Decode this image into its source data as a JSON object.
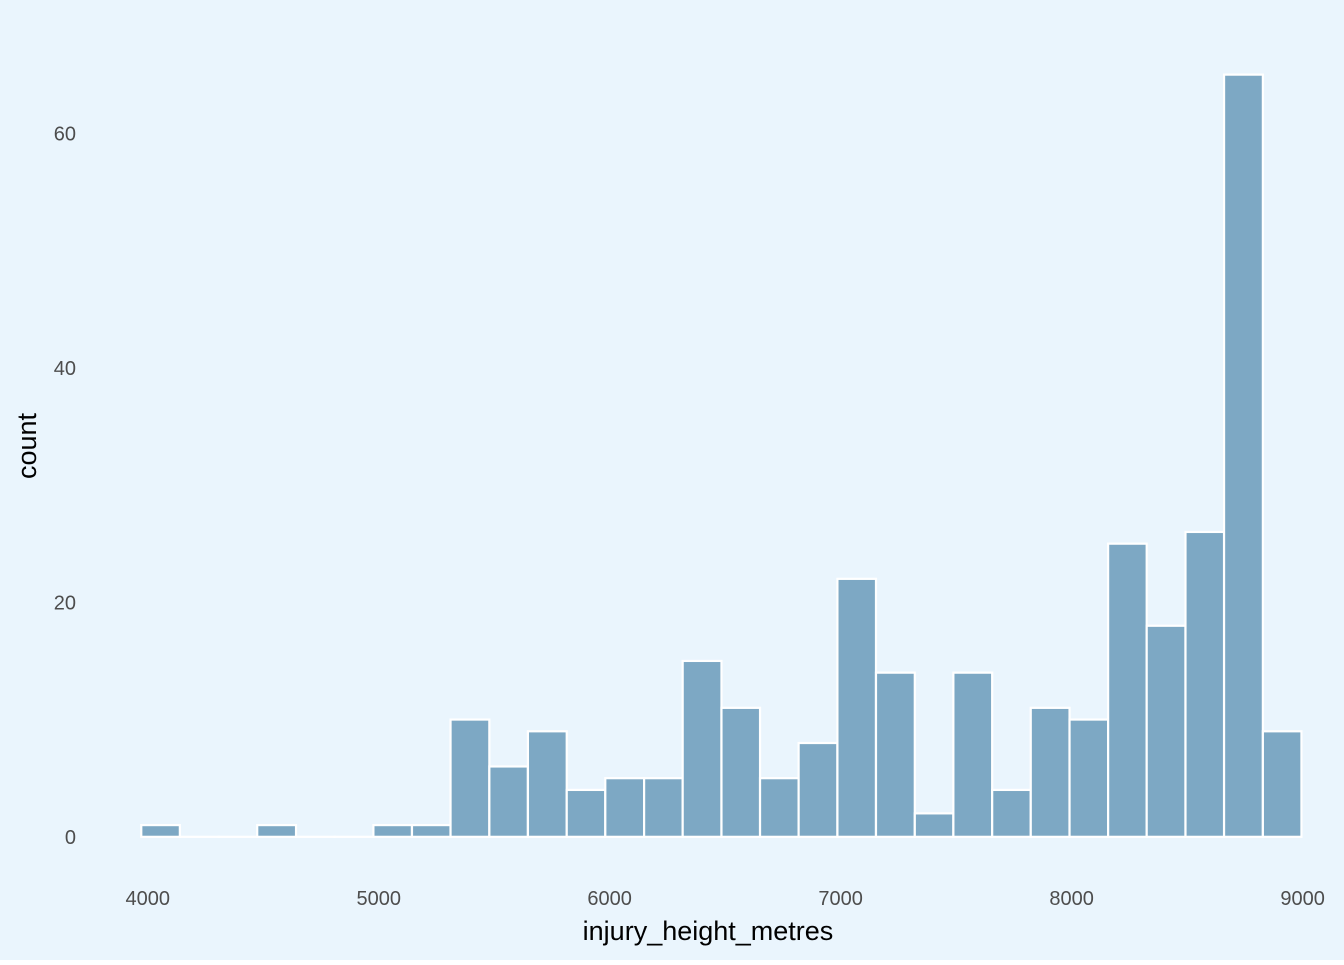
{
  "colors": {
    "background": "#eaf5fd",
    "bar_fill": "#7da8c4",
    "bar_stroke": "#ffffff"
  },
  "chart_data": {
    "type": "bar",
    "subtype": "histogram",
    "title": "",
    "xlabel": "injury_height_metres",
    "ylabel": "count",
    "xlim": [
      3750,
      9110
    ],
    "ylim": [
      -3,
      70
    ],
    "x_ticks": [
      4000,
      5000,
      6000,
      7000,
      8000,
      9000
    ],
    "y_ticks": [
      0,
      20,
      40,
      60
    ],
    "grid": false,
    "legend": "none",
    "bin_width": 167.4,
    "bins": [
      {
        "start": 3972,
        "end": 4139,
        "count": 1
      },
      {
        "start": 4139,
        "end": 4307,
        "count": 0
      },
      {
        "start": 4307,
        "end": 4474,
        "count": 0
      },
      {
        "start": 4474,
        "end": 4642,
        "count": 1
      },
      {
        "start": 4642,
        "end": 4809,
        "count": 0
      },
      {
        "start": 4809,
        "end": 4977,
        "count": 0
      },
      {
        "start": 4977,
        "end": 5144,
        "count": 1
      },
      {
        "start": 5144,
        "end": 5311,
        "count": 1
      },
      {
        "start": 5311,
        "end": 5479,
        "count": 10
      },
      {
        "start": 5479,
        "end": 5646,
        "count": 6
      },
      {
        "start": 5646,
        "end": 5814,
        "count": 9
      },
      {
        "start": 5814,
        "end": 5981,
        "count": 4
      },
      {
        "start": 5981,
        "end": 6149,
        "count": 5
      },
      {
        "start": 6149,
        "end": 6316,
        "count": 5
      },
      {
        "start": 6316,
        "end": 6484,
        "count": 15
      },
      {
        "start": 6484,
        "end": 6651,
        "count": 11
      },
      {
        "start": 6651,
        "end": 6818,
        "count": 5
      },
      {
        "start": 6818,
        "end": 6986,
        "count": 8
      },
      {
        "start": 6986,
        "end": 7153,
        "count": 22
      },
      {
        "start": 7153,
        "end": 7321,
        "count": 14
      },
      {
        "start": 7321,
        "end": 7488,
        "count": 2
      },
      {
        "start": 7488,
        "end": 7656,
        "count": 14
      },
      {
        "start": 7656,
        "end": 7823,
        "count": 4
      },
      {
        "start": 7823,
        "end": 7991,
        "count": 11
      },
      {
        "start": 7991,
        "end": 8158,
        "count": 10
      },
      {
        "start": 8158,
        "end": 8325,
        "count": 25
      },
      {
        "start": 8325,
        "end": 8493,
        "count": 18
      },
      {
        "start": 8493,
        "end": 8660,
        "count": 26
      },
      {
        "start": 8660,
        "end": 8828,
        "count": 65
      },
      {
        "start": 8828,
        "end": 8995,
        "count": 9
      }
    ]
  }
}
